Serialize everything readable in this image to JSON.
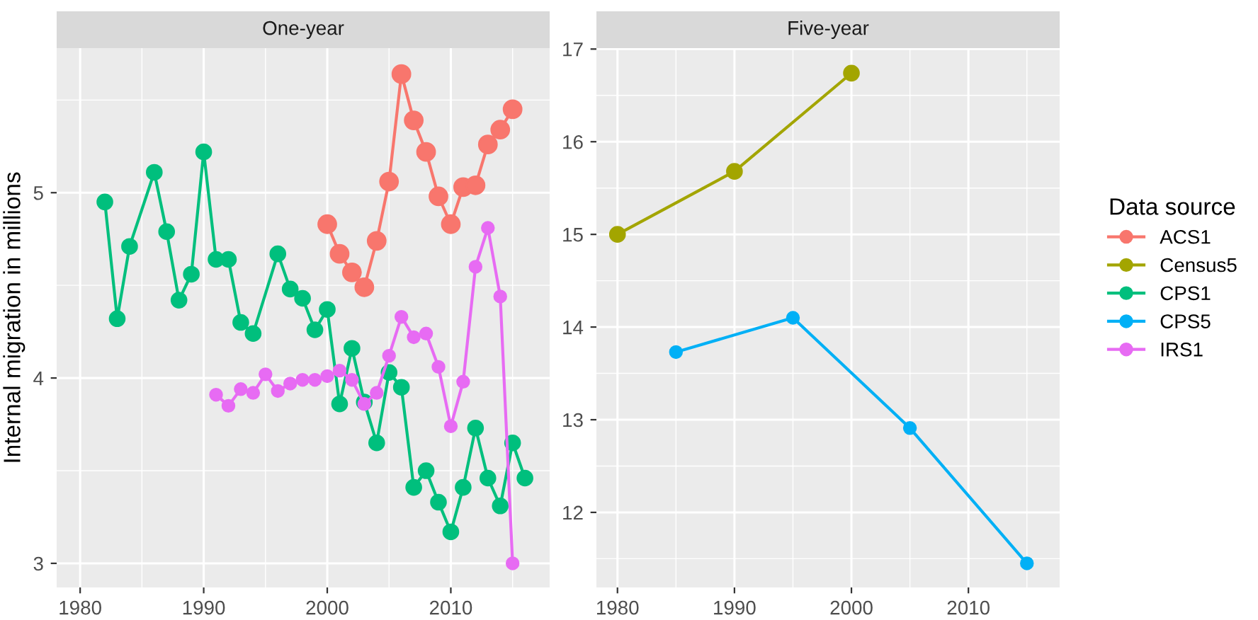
{
  "chart_data": [
    {
      "type": "line",
      "title": "One-year",
      "ylabel": "Internal migration in millions",
      "xlim": [
        1978.1,
        2018.0
      ],
      "ylim": [
        2.87,
        5.78
      ],
      "xticks": [
        1980,
        1990,
        2000,
        2010
      ],
      "yticks": [
        3,
        4,
        5
      ],
      "grid": true,
      "marker": "circle",
      "legend": "right",
      "series": [
        {
          "name": "ACS1",
          "color": "#f8766d",
          "x": [
            2000,
            2001,
            2002,
            2003,
            2004,
            2005,
            2006,
            2007,
            2008,
            2009,
            2010,
            2011,
            2012,
            2013,
            2014,
            2015
          ],
          "values": [
            4.83,
            4.67,
            4.57,
            4.49,
            4.74,
            5.06,
            5.64,
            5.39,
            5.22,
            4.98,
            4.83,
            5.03,
            5.04,
            5.26,
            5.34,
            5.45
          ]
        },
        {
          "name": "CPS1",
          "color": "#00bf7d",
          "x": [
            1982,
            1983,
            1984,
            1986,
            1987,
            1988,
            1989,
            1990,
            1991,
            1992,
            1993,
            1994,
            1996,
            1997,
            1998,
            1999,
            2000,
            2001,
            2002,
            2003,
            2004,
            2005,
            2006,
            2007,
            2008,
            2009,
            2010,
            2011,
            2012,
            2013,
            2014,
            2015,
            2016
          ],
          "values": [
            4.95,
            4.32,
            4.71,
            5.11,
            4.79,
            4.42,
            4.56,
            5.22,
            4.64,
            4.64,
            4.3,
            4.24,
            4.67,
            4.48,
            4.43,
            4.26,
            4.37,
            3.86,
            4.16,
            3.87,
            3.65,
            4.03,
            3.95,
            3.41,
            3.5,
            3.33,
            3.17,
            3.41,
            3.73,
            3.46,
            3.31,
            3.65,
            3.46
          ]
        },
        {
          "name": "IRS1",
          "color": "#e76bf3",
          "x": [
            1991,
            1992,
            1993,
            1994,
            1995,
            1996,
            1997,
            1998,
            1999,
            2000,
            2001,
            2002,
            2003,
            2004,
            2005,
            2006,
            2007,
            2008,
            2009,
            2010,
            2011,
            2012,
            2013,
            2014,
            2015
          ],
          "values": [
            3.91,
            3.85,
            3.94,
            3.92,
            4.02,
            3.93,
            3.97,
            3.99,
            3.99,
            4.01,
            4.04,
            3.99,
            3.86,
            3.92,
            4.12,
            4.33,
            4.22,
            4.24,
            4.06,
            3.74,
            3.98,
            4.6,
            4.81,
            4.44,
            3.0
          ]
        }
      ]
    },
    {
      "type": "line",
      "title": "Five-year",
      "legend_title": "Data source",
      "xlim": [
        1978.2,
        2017.8
      ],
      "ylim": [
        11.19,
        17.01
      ],
      "xticks": [
        1980,
        1990,
        2000,
        2010
      ],
      "yticks": [
        12,
        13,
        14,
        15,
        16,
        17
      ],
      "grid": true,
      "marker": "circle",
      "legend": "right",
      "series": [
        {
          "name": "Census5",
          "color": "#a3a500",
          "x": [
            1980,
            1990,
            2000
          ],
          "values": [
            15.0,
            15.68,
            16.74
          ]
        },
        {
          "name": "CPS5",
          "color": "#00b0f6",
          "x": [
            1985,
            1995,
            2005,
            2015
          ],
          "values": [
            13.73,
            14.1,
            12.91,
            11.45
          ]
        }
      ]
    }
  ]
}
